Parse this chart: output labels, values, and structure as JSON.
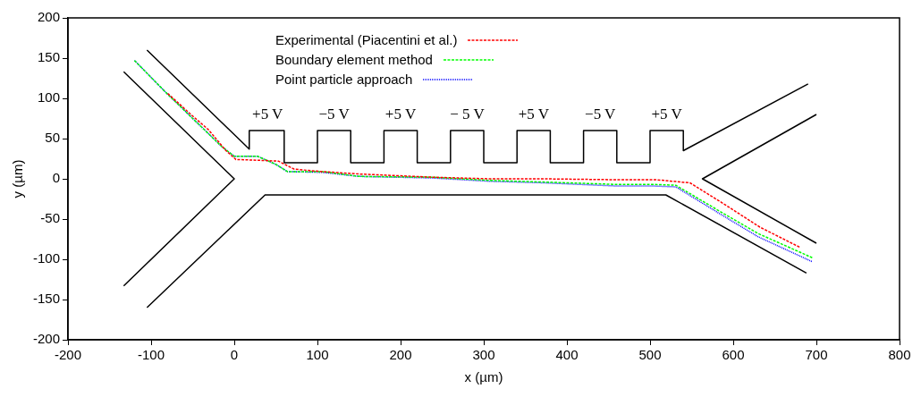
{
  "chart_data": {
    "type": "line",
    "xlabel": "x (µm)",
    "ylabel": "y (µm)",
    "xlim": [
      -200,
      800
    ],
    "ylim": [
      -200,
      200
    ],
    "xticks": [
      -200,
      -100,
      0,
      100,
      200,
      300,
      400,
      500,
      600,
      700,
      800
    ],
    "yticks": [
      -200,
      -150,
      -100,
      -50,
      0,
      50,
      100,
      150,
      200
    ],
    "grid": false,
    "legend": "top",
    "marker": "none",
    "series": [
      {
        "type": "line",
        "color": "#000000",
        "line_style": "solid",
        "x": [
          -105,
          18,
          18,
          60,
          60,
          100,
          100,
          140,
          140,
          180,
          180,
          220,
          220,
          260,
          260,
          300,
          300,
          340,
          340,
          380,
          380,
          420,
          420,
          460,
          460,
          500,
          500,
          540,
          540,
          690
        ],
        "values": [
          160,
          37,
          60,
          60,
          20,
          20,
          60,
          60,
          20,
          20,
          60,
          60,
          20,
          20,
          60,
          60,
          20,
          20,
          60,
          60,
          20,
          20,
          60,
          60,
          20,
          20,
          60,
          60,
          35,
          118
        ]
      },
      {
        "type": "line",
        "color": "#000000",
        "line_style": "solid",
        "x": [
          -105,
          37,
          519,
          688
        ],
        "values": [
          -160,
          -20,
          -20,
          -117
        ]
      },
      {
        "type": "line",
        "color": "#000000",
        "line_style": "solid",
        "x": [
          -133,
          0,
          -133
        ],
        "values": [
          133,
          0,
          -133
        ]
      },
      {
        "type": "line",
        "color": "#000000",
        "line_style": "solid",
        "x": [
          700,
          563,
          700
        ],
        "values": [
          80,
          0,
          -80
        ]
      },
      {
        "name": "Experimental (Piacentini et al.)",
        "color": "#ff0000",
        "line_style": "dashed",
        "x": [
          -80,
          -50,
          -31,
          -10,
          2,
          30,
          53,
          72,
          106,
          150,
          239,
          306,
          372,
          450,
          506,
          548,
          590,
          632,
          680
        ],
        "values": [
          106,
          78,
          61,
          35,
          24,
          23,
          22,
          12,
          9,
          6,
          2,
          0,
          0,
          -1,
          -1,
          -5,
          -32,
          -60,
          -85
        ]
      },
      {
        "name": "Boundary element method",
        "color": "#00ff00",
        "line_style": "dashed",
        "x": [
          -120,
          -80,
          -40,
          -15,
          0,
          28,
          50,
          64,
          106,
          150,
          239,
          306,
          372,
          461,
          506,
          531,
          580,
          630,
          695
        ],
        "values": [
          147,
          105,
          65,
          40,
          28,
          28,
          18,
          9,
          9,
          3,
          2,
          -2,
          -4,
          -7,
          -7,
          -8,
          -38,
          -68,
          -98
        ]
      },
      {
        "name": "Point particle approach",
        "color": "#0000ff",
        "line_style": "dotted",
        "x": [
          -120,
          -80,
          -40,
          -15,
          0,
          28,
          50,
          64,
          106,
          150,
          239,
          306,
          372,
          461,
          506,
          531,
          580,
          630,
          695
        ],
        "values": [
          147,
          105,
          65,
          40,
          28,
          28,
          18,
          9,
          8,
          3,
          1,
          -3,
          -5,
          -9,
          -9,
          -10,
          -41,
          -72,
          -103
        ]
      }
    ],
    "annotations": [
      "+5 V",
      "−5 V",
      "+5 V",
      "− 5 V",
      "+5 V",
      "−5 V",
      "+5 V"
    ]
  }
}
